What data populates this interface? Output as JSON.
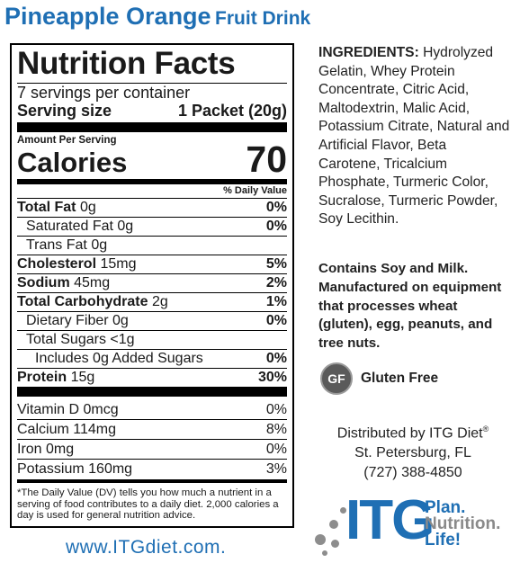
{
  "title": {
    "main": "Pineapple Orange",
    "sub": "Fruit Drink"
  },
  "nutrition": {
    "heading": "Nutrition Facts",
    "servings": "7 servings per container",
    "serving_size_label": "Serving size",
    "serving_size_value": "1 Packet (20g)",
    "amount_per_serving": "Amount Per Serving",
    "calories_label": "Calories",
    "calories_value": "70",
    "dv_header": "% Daily Value",
    "rows": [
      {
        "name": "Total Fat",
        "amount": "0g",
        "pct": "0%"
      },
      {
        "name": "Saturated Fat",
        "amount": "0g",
        "pct": "0%"
      },
      {
        "name": "Trans Fat",
        "amount": "0g",
        "pct": ""
      },
      {
        "name": "Cholesterol",
        "amount": "15mg",
        "pct": "5%"
      },
      {
        "name": "Sodium",
        "amount": "45mg",
        "pct": "2%"
      },
      {
        "name": "Total Carbohydrate",
        "amount": "2g",
        "pct": "1%"
      },
      {
        "name": "Dietary Fiber",
        "amount": "0g",
        "pct": "0%"
      },
      {
        "name": "Total Sugars",
        "amount": "<1g",
        "pct": ""
      },
      {
        "name": "Includes 0g Added Sugars",
        "amount": "",
        "pct": "0%"
      },
      {
        "name": "Protein",
        "amount": "15g",
        "pct": "30%"
      }
    ],
    "vitamins": [
      {
        "name": "Vitamin D",
        "amount": "0mcg",
        "pct": "0%"
      },
      {
        "name": "Calcium",
        "amount": "114mg",
        "pct": "8%"
      },
      {
        "name": "Iron",
        "amount": "0mg",
        "pct": "0%"
      },
      {
        "name": "Potassium",
        "amount": "160mg",
        "pct": "3%"
      }
    ],
    "footnote": "*The Daily Value (DV) tells you how much a nutrient in a serving of food contributes to a daily diet. 2,000 calories a day is used for general nutrition advice."
  },
  "ingredients": {
    "label": "INGREDIENTS:",
    "text": "Hydrolyzed Gelatin, Whey Protein Concentrate, Citric Acid, Maltodextrin, Malic Acid, Potassium Citrate, Natural and Artificial Flavor, Beta Carotene, Tricalcium Phosphate, Turmeric Color, Sucralose, Turmeric Powder, Soy Lecithin."
  },
  "allergen": "Contains Soy and Milk. Manufactured on equipment that processes wheat (gluten), egg, peanuts, and tree nuts.",
  "gluten_free": {
    "badge": "GF",
    "label": "Gluten Free"
  },
  "distributor": {
    "line1": "Distributed by ITG Diet",
    "reg": "®",
    "line2": "St. Petersburg, FL",
    "phone": "(727) 388-4850"
  },
  "website": "www.ITGdiet.com.",
  "logo": {
    "brand": "ITG",
    "tag1": "Plan.",
    "tag2": "Nutrition.",
    "tag3": "Life!"
  },
  "colors": {
    "brand_blue": "#1f6fb4",
    "gray": "#8a8a8a"
  }
}
